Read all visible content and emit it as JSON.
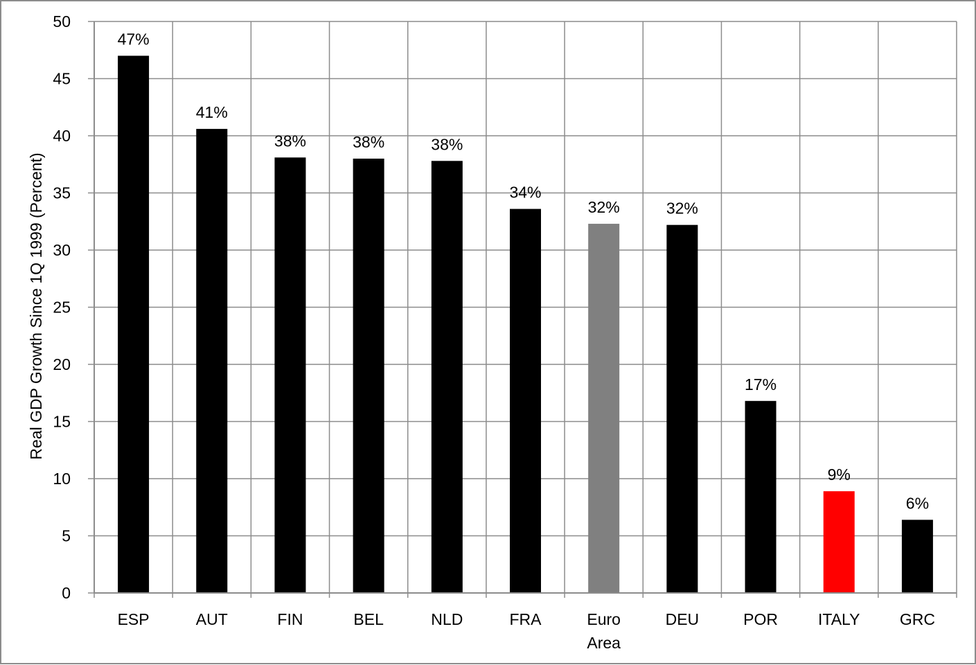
{
  "chart_data": {
    "type": "bar",
    "categories": [
      "ESP",
      "AUT",
      "FIN",
      "BEL",
      "NLD",
      "FRA",
      "Euro Area",
      "DEU",
      "POR",
      "ITALY",
      "GRC"
    ],
    "category_lines": [
      [
        "ESP"
      ],
      [
        "AUT"
      ],
      [
        "FIN"
      ],
      [
        "BEL"
      ],
      [
        "NLD"
      ],
      [
        "FRA"
      ],
      [
        "Euro",
        "Area"
      ],
      [
        "DEU"
      ],
      [
        "POR"
      ],
      [
        "ITALY"
      ],
      [
        "GRC"
      ]
    ],
    "values": [
      47.0,
      40.6,
      38.1,
      38.0,
      37.8,
      33.6,
      32.3,
      32.2,
      16.8,
      8.9,
      6.4
    ],
    "data_labels": [
      "47%",
      "41%",
      "38%",
      "38%",
      "38%",
      "34%",
      "32%",
      "32%",
      "17%",
      "9%",
      "6%"
    ],
    "bar_colors": [
      "#000000",
      "#000000",
      "#000000",
      "#000000",
      "#000000",
      "#000000",
      "#808080",
      "#000000",
      "#000000",
      "#ff0000",
      "#000000"
    ],
    "title": "",
    "xlabel": "",
    "ylabel": "Real GDP Growth Since 1Q 1999 (Percent)",
    "ylim": [
      0,
      50
    ],
    "yticks": [
      0,
      5,
      10,
      15,
      20,
      25,
      30,
      35,
      40,
      45,
      50
    ],
    "grid": true,
    "legend": "none"
  }
}
